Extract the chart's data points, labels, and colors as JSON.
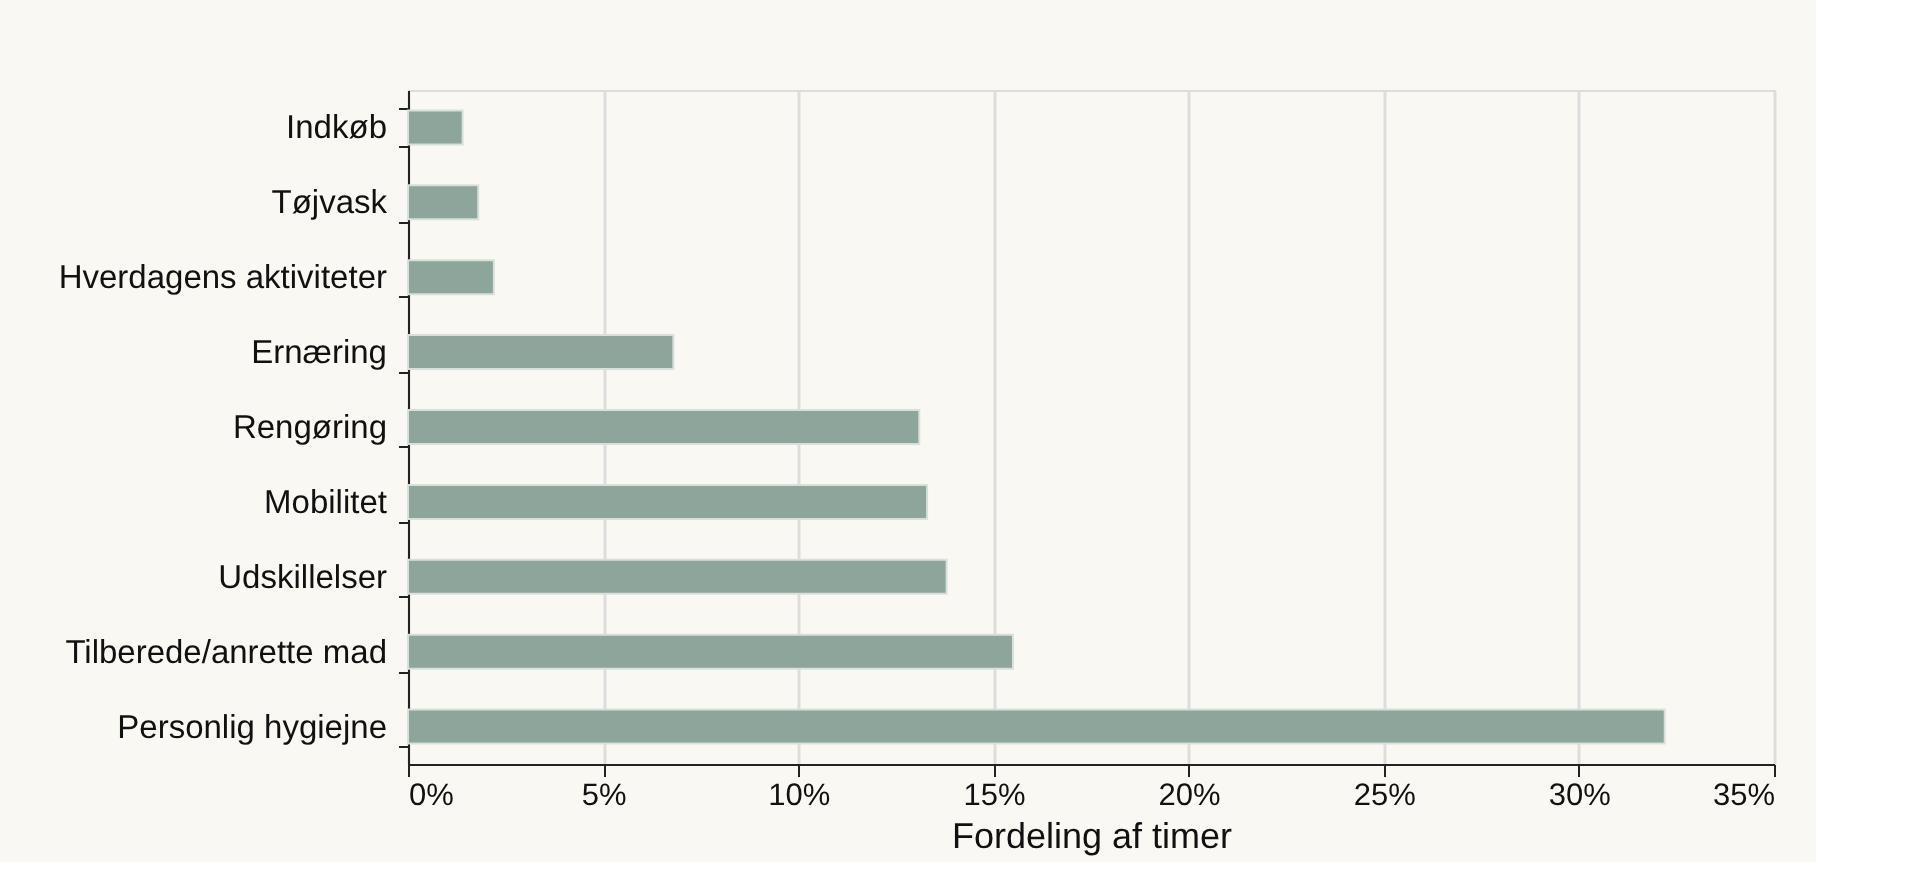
{
  "chart_data": {
    "type": "bar",
    "orientation": "horizontal",
    "xlabel": "Fordeling af timer",
    "categories": [
      "Indkøb",
      "Tøjvask",
      "Hverdagens aktiviteter",
      "Ernæring",
      "Rengøring",
      "Mobilitet",
      "Udskillelser",
      "Tilberede/anrette mad",
      "Personlig hygiejne"
    ],
    "values": [
      1.4,
      1.8,
      2.2,
      6.8,
      13.1,
      13.3,
      13.8,
      15.5,
      32.2
    ],
    "color": "#8da59b",
    "xlim": [
      0,
      35
    ],
    "xticks": [
      {
        "value": 0,
        "label": "0%"
      },
      {
        "value": 5,
        "label": "5%"
      },
      {
        "value": 10,
        "label": "10%"
      },
      {
        "value": 15,
        "label": "15%"
      },
      {
        "value": 20,
        "label": "20%"
      },
      {
        "value": 25,
        "label": "25%"
      },
      {
        "value": 30,
        "label": "30%"
      },
      {
        "value": 35,
        "label": "35%"
      }
    ],
    "grid": "x"
  }
}
